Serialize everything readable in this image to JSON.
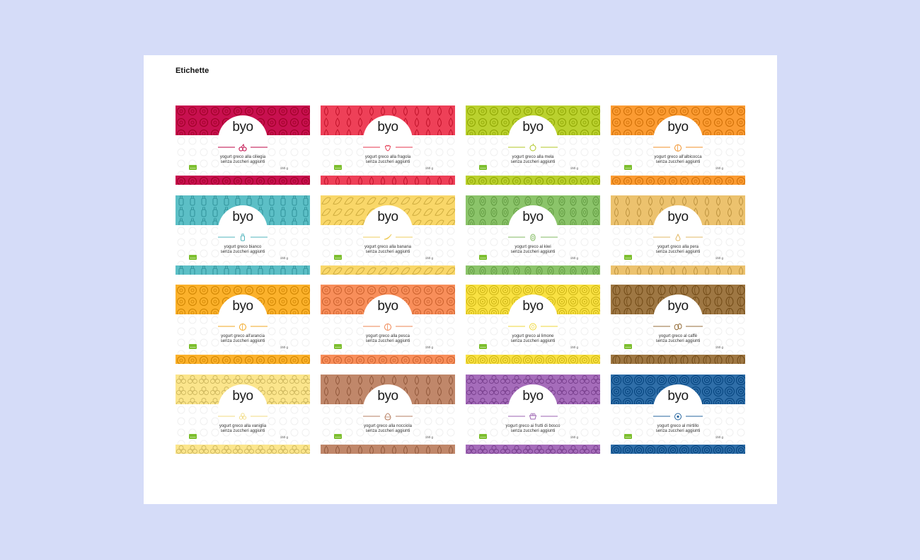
{
  "page": {
    "title": "Etichette"
  },
  "labels": [
    {
      "id": "ciliegia",
      "brand": "byo",
      "line1": "yogurt greco alla ciliegia",
      "line2": "senza zuccheri aggiunti",
      "weight": "150 g",
      "color": "#c8104f",
      "icon": "cherry-icon"
    },
    {
      "id": "fragola",
      "brand": "byo",
      "line1": "yogurt greco alla fragola",
      "line2": "senza zuccheri aggiunti",
      "weight": "150 g",
      "color": "#ee4058",
      "icon": "strawberry-icon"
    },
    {
      "id": "mela",
      "brand": "byo",
      "line1": "yogurt greco alla mela",
      "line2": "senza zuccheri aggiunti",
      "weight": "150 g",
      "color": "#bad12e",
      "icon": "apple-icon"
    },
    {
      "id": "albicocca",
      "brand": "byo",
      "line1": "yogurt greco all'albicocca",
      "line2": "senza zuccheri aggiunti",
      "weight": "150 g",
      "color": "#fb9b32",
      "icon": "apricot-icon"
    },
    {
      "id": "bianco",
      "brand": "byo",
      "line1": "yogurt greco bianco",
      "line2": "senza zuccheri aggiunti",
      "weight": "150 g",
      "color": "#5cbfc6",
      "icon": "bottle-icon"
    },
    {
      "id": "banana",
      "brand": "byo",
      "line1": "yogurt greco alla banana",
      "line2": "senza zuccheri aggiunti",
      "weight": "150 g",
      "color": "#f9d769",
      "icon": "banana-icon"
    },
    {
      "id": "kiwi",
      "brand": "byo",
      "line1": "yogurt greco al kiwi",
      "line2": "senza zuccheri aggiunti",
      "weight": "150 g",
      "color": "#8bc46a",
      "icon": "kiwi-icon"
    },
    {
      "id": "pera",
      "brand": "byo",
      "line1": "yogurt greco alla pera",
      "line2": "senza zuccheri aggiunti",
      "weight": "150 g",
      "color": "#ecc26e",
      "icon": "pear-icon"
    },
    {
      "id": "arancia",
      "brand": "byo",
      "line1": "yogurt greco all'arancia",
      "line2": "senza zuccheri aggiunti",
      "weight": "150 g",
      "color": "#fbb12b",
      "icon": "orange-icon"
    },
    {
      "id": "pesca",
      "brand": "byo",
      "line1": "yogurt greco alla pesca",
      "line2": "senza zuccheri aggiunti",
      "weight": "150 g",
      "color": "#f88e5a",
      "icon": "peach-icon"
    },
    {
      "id": "limone",
      "brand": "byo",
      "line1": "yogurt greco al limone",
      "line2": "senza zuccheri aggiunti",
      "weight": "150 g",
      "color": "#f9e142",
      "icon": "lemon-icon"
    },
    {
      "id": "caffe",
      "brand": "byo",
      "line1": "yogurt greco al caffè",
      "line2": "senza zuccheri aggiunti",
      "weight": "150 g",
      "color": "#9e7743",
      "icon": "coffee-bean-icon"
    },
    {
      "id": "vaniglia",
      "brand": "byo",
      "line1": "yogurt greco alla vaniglia",
      "line2": "senza zuccheri aggiunti",
      "weight": "150 g",
      "color": "#fbe58c",
      "icon": "vanilla-flower-icon"
    },
    {
      "id": "nocciola",
      "brand": "byo",
      "line1": "yogurt greco alla nocciola",
      "line2": "senza zuccheri aggiunti",
      "weight": "150 g",
      "color": "#c0876a",
      "icon": "hazelnut-icon"
    },
    {
      "id": "frutti-di-bosco",
      "brand": "byo",
      "line1": "yogurt greco ai frutti di bosco",
      "line2": "senza zuccheri aggiunti",
      "weight": "150 g",
      "color": "#a56cba",
      "icon": "berry-icon"
    },
    {
      "id": "mirtillo",
      "brand": "byo",
      "line1": "yogurt greco al mirtillo",
      "line2": "senza zuccheri aggiunti",
      "weight": "150 g",
      "color": "#2f6ea8",
      "icon": "blueberry-icon"
    }
  ]
}
